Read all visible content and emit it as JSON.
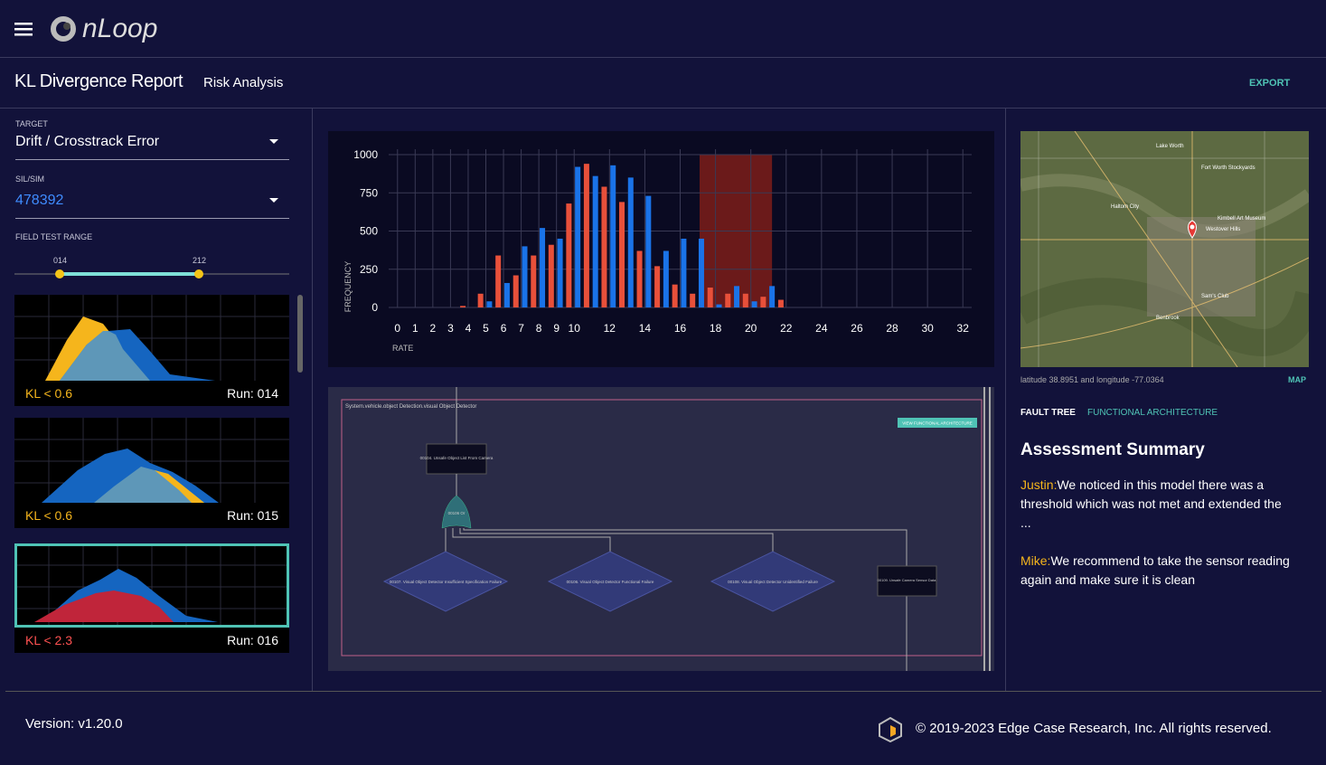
{
  "header": {
    "brand": "nLoop"
  },
  "toolbar": {
    "title": "KL Divergence Report",
    "subtitle": "Risk Analysis",
    "export": "EXPORT"
  },
  "sidebar": {
    "target": {
      "label": "TARGET",
      "value": "Drift / Crosstrack Error"
    },
    "sim": {
      "label": "SIL/SIM",
      "value": "478392"
    },
    "range": {
      "label": "FIELD TEST RANGE",
      "start": "014",
      "end": "212"
    },
    "runs": [
      {
        "kl": "KL < 0.6",
        "run_label": "Run:",
        "run": "014"
      },
      {
        "kl": "KL < 0.6",
        "run_label": "Run:",
        "run": "015"
      },
      {
        "kl": "KL < 2.3",
        "run_label": "Run:",
        "run": "016"
      }
    ]
  },
  "chart_data": {
    "type": "bar",
    "xlabel": "RATE",
    "ylabel": "FREQUENCY",
    "xlim": [
      -0.5,
      32.5
    ],
    "ylim": [
      0,
      1000
    ],
    "xticks": [
      0,
      1,
      2,
      3,
      4,
      5,
      6,
      7,
      8,
      9,
      10,
      12,
      14,
      16,
      18,
      20,
      22,
      24,
      26,
      28,
      30,
      32
    ],
    "yticks": [
      0,
      250,
      500,
      750,
      1000
    ],
    "grid": true,
    "highlight": {
      "range": [
        17.1,
        21.2
      ],
      "color": "#6b1a1a"
    },
    "series": [
      {
        "color": "#e8503a",
        "x": [
          3.7,
          4.7,
          5.7,
          6.7,
          7.7,
          8.7,
          9.7,
          10.7,
          11.7,
          12.7,
          13.7,
          14.7,
          15.7,
          16.7,
          17.7,
          18.7,
          19.7,
          20.7,
          21.7
        ],
        "values": [
          10,
          90,
          340,
          210,
          340,
          410,
          680,
          940,
          790,
          690,
          370,
          270,
          150,
          90,
          130,
          90,
          90,
          70,
          50
        ]
      },
      {
        "color": "#1a73e8",
        "x": [
          5.2,
          6.2,
          7.2,
          8.2,
          9.2,
          10.2,
          11.2,
          12.2,
          13.2,
          14.2,
          15.2,
          16.2,
          17.2,
          18.2,
          19.2,
          20.2,
          21.2
        ],
        "values": [
          40,
          160,
          400,
          520,
          450,
          920,
          860,
          930,
          850,
          730,
          370,
          450,
          450,
          20,
          140,
          40,
          140
        ]
      }
    ]
  },
  "fault_tree": {
    "title": "System.vehicle.object Detection.visual Object Detector",
    "button": "VIEW FUNCTIONAL ARCHITECTURE",
    "nodes": [
      "00104. Unsafe Object List From Camera",
      "00106 Or",
      "00107. Visual Object Detector Insufficient Specification Failure",
      "00106. Visual Object Detector Functional Failure",
      "00108. Visual Object Detector Unidentified Failure",
      "00109. Unsafe Camera Sensor Data"
    ]
  },
  "map": {
    "places": [
      "Lake Worth",
      "Fort Worth Stockyards",
      "Haltom City",
      "Westover Hills",
      "Kimbell Art Museum",
      "Sam's Club",
      "Benbrook"
    ],
    "caption": "latitude 38.8951 and longitude -77.0364",
    "link": "MAP"
  },
  "panel": {
    "tabs": [
      "FAULT TREE",
      "FUNCTIONAL ARCHITECTURE"
    ],
    "heading": "Assessment Summary",
    "comments": [
      {
        "author": "Justin:",
        "text": "We noticed in this model there was a threshold which was not met and extended the ..."
      },
      {
        "author": "Mike:",
        "text": "We recommend to take the sensor reading again and make sure it is clean"
      }
    ]
  },
  "footer": {
    "version": "Version: v1.20.0",
    "copyright": "© 2019-2023 Edge Case Research, Inc. All rights reserved."
  }
}
